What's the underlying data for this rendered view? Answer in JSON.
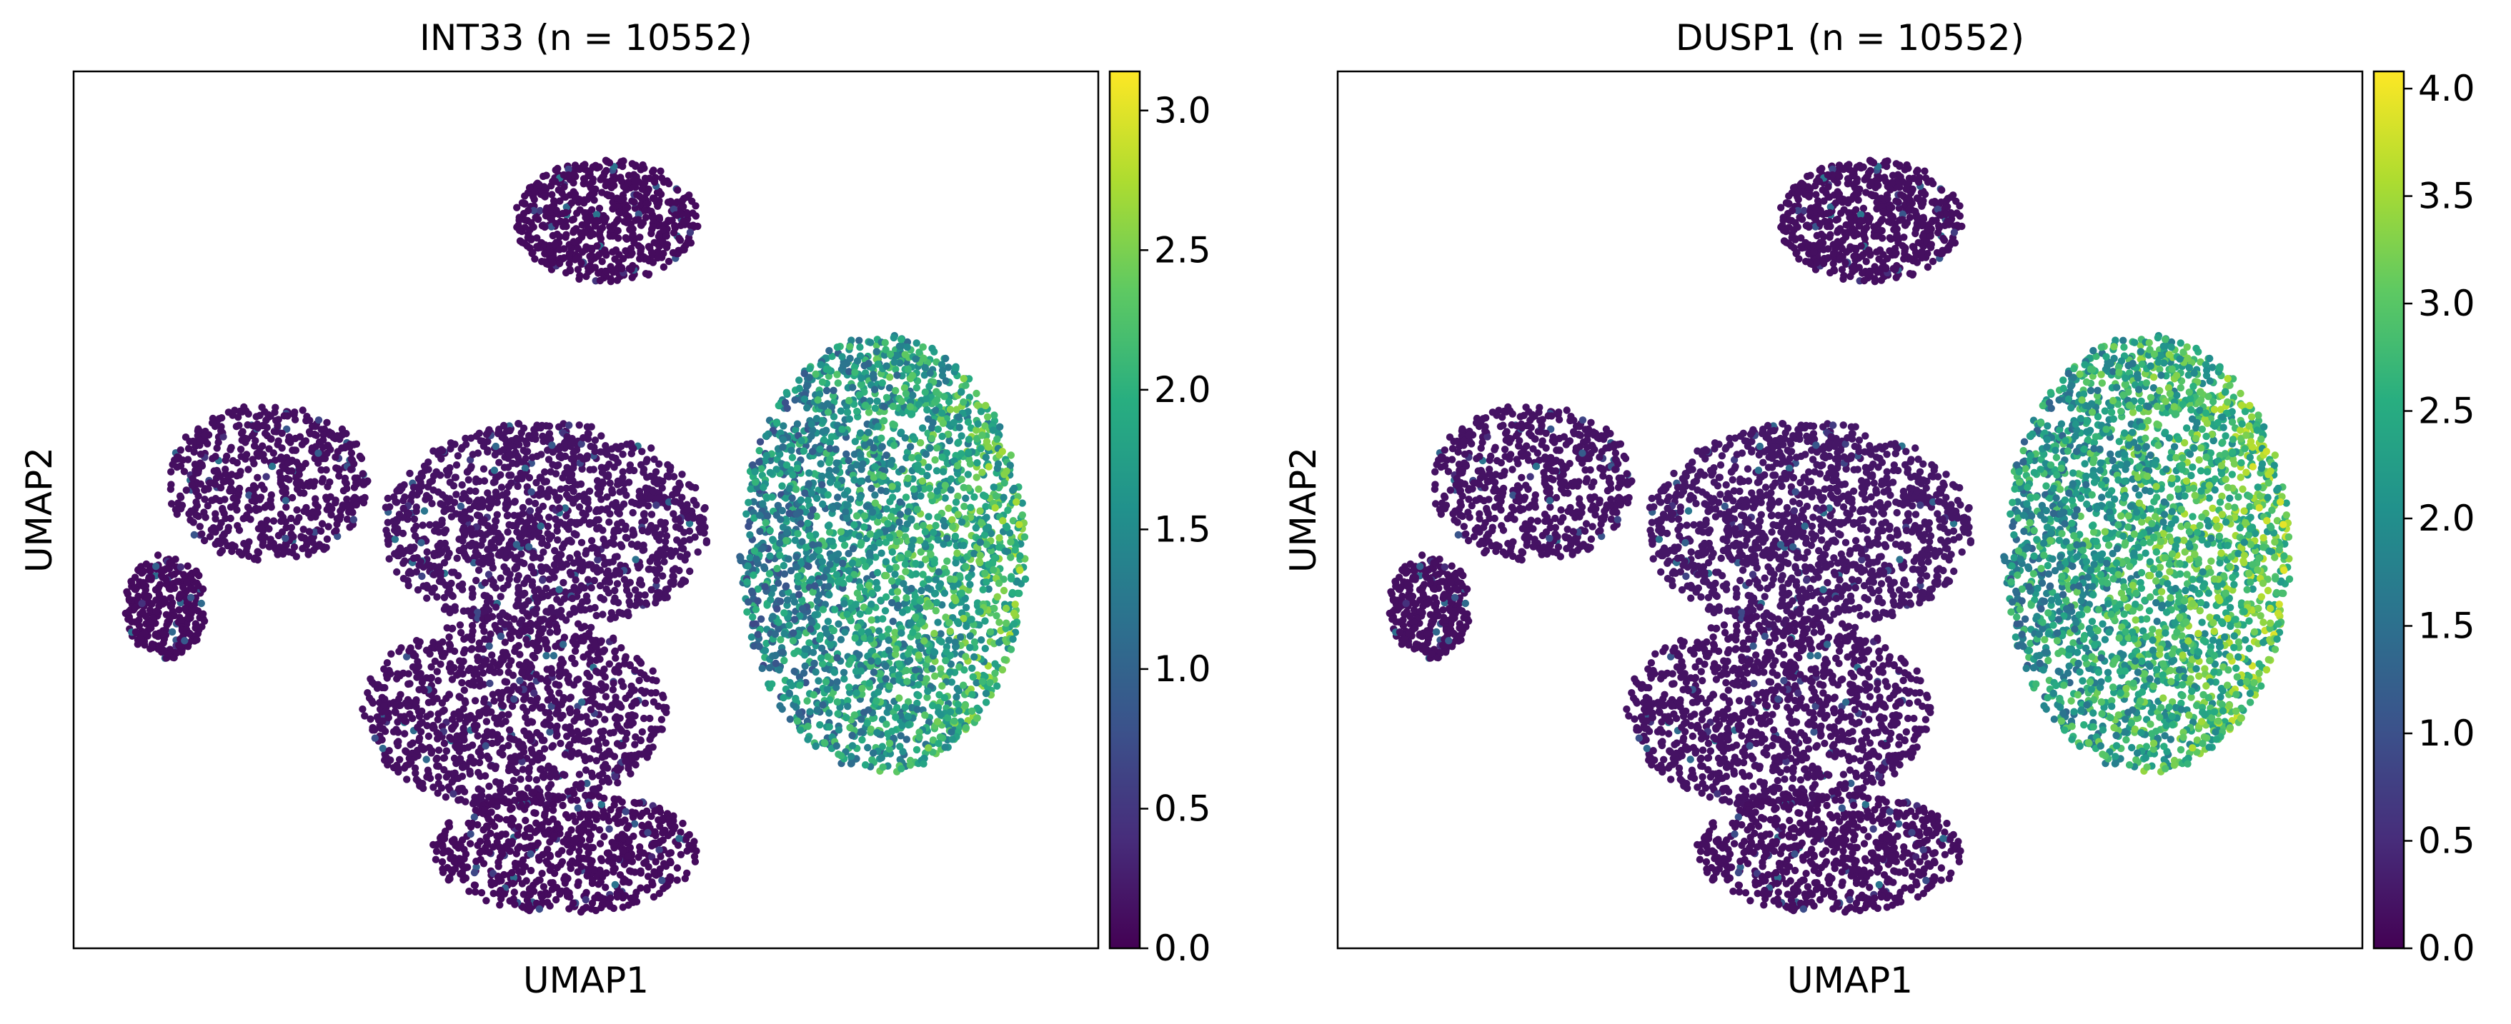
{
  "chart_data": [
    {
      "type": "scatter",
      "title": "INT33 (n = 10552)",
      "xlabel": "UMAP1",
      "ylabel": "UMAP2",
      "colormap": "viridis",
      "colorbar": {
        "range": [
          0,
          3.14
        ],
        "ticks": [
          0.0,
          0.5,
          1.0,
          1.5,
          2.0,
          2.5,
          3.0
        ],
        "tick_labels": [
          "0.0",
          "0.5",
          "1.0",
          "1.5",
          "2.0",
          "2.5",
          "3.0"
        ]
      },
      "grid": false,
      "clusters": [
        {
          "cx": 0.52,
          "cy": 0.83,
          "rx": 0.09,
          "ry": 0.07,
          "n": 650,
          "level": 0.03
        },
        {
          "cx": 0.19,
          "cy": 0.53,
          "rx": 0.1,
          "ry": 0.09,
          "n": 600,
          "level": 0.04
        },
        {
          "cx": 0.09,
          "cy": 0.39,
          "rx": 0.04,
          "ry": 0.06,
          "n": 300,
          "level": 0.03
        },
        {
          "cx": 0.46,
          "cy": 0.48,
          "rx": 0.16,
          "ry": 0.12,
          "n": 1300,
          "level": 0.05
        },
        {
          "cx": 0.43,
          "cy": 0.27,
          "rx": 0.15,
          "ry": 0.11,
          "n": 1100,
          "level": 0.04
        },
        {
          "cx": 0.48,
          "cy": 0.11,
          "rx": 0.13,
          "ry": 0.07,
          "n": 700,
          "level": 0.03
        },
        {
          "cx": 0.79,
          "cy": 0.45,
          "rx": 0.14,
          "ry": 0.25,
          "n": 2600,
          "level": 0.55
        }
      ],
      "value_range": [
        0,
        3.14
      ]
    },
    {
      "type": "scatter",
      "title": "DUSP1 (n = 10552)",
      "xlabel": "UMAP1",
      "ylabel": "UMAP2",
      "colormap": "viridis",
      "colorbar": {
        "range": [
          0,
          4.08
        ],
        "ticks": [
          0.0,
          0.5,
          1.0,
          1.5,
          2.0,
          2.5,
          3.0,
          3.5,
          4.0
        ],
        "tick_labels": [
          "0.0",
          "0.5",
          "1.0",
          "1.5",
          "2.0",
          "2.5",
          "3.0",
          "3.5",
          "4.0"
        ]
      },
      "grid": false,
      "clusters": [
        {
          "cx": 0.52,
          "cy": 0.83,
          "rx": 0.09,
          "ry": 0.07,
          "n": 650,
          "level": 0.04
        },
        {
          "cx": 0.19,
          "cy": 0.53,
          "rx": 0.1,
          "ry": 0.09,
          "n": 600,
          "level": 0.05
        },
        {
          "cx": 0.09,
          "cy": 0.39,
          "rx": 0.04,
          "ry": 0.06,
          "n": 300,
          "level": 0.04
        },
        {
          "cx": 0.46,
          "cy": 0.48,
          "rx": 0.16,
          "ry": 0.12,
          "n": 1300,
          "level": 0.06
        },
        {
          "cx": 0.43,
          "cy": 0.27,
          "rx": 0.15,
          "ry": 0.11,
          "n": 1100,
          "level": 0.05
        },
        {
          "cx": 0.48,
          "cy": 0.11,
          "rx": 0.13,
          "ry": 0.07,
          "n": 700,
          "level": 0.04
        },
        {
          "cx": 0.79,
          "cy": 0.45,
          "rx": 0.14,
          "ry": 0.25,
          "n": 2600,
          "level": 0.62
        }
      ],
      "value_range": [
        0,
        4.08
      ]
    }
  ]
}
